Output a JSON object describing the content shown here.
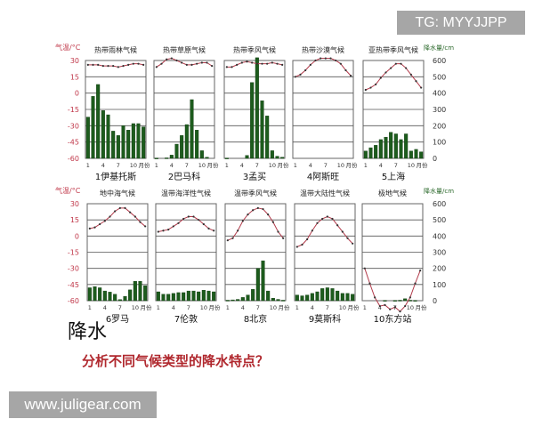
{
  "watermark_top": "TG: MYYJJPP",
  "watermark_bottom": "www.juligear.com",
  "question": "分析不同气候类型的降水特点？",
  "precip_label": "降水",
  "colors": {
    "bar": "#1d5c1d",
    "temp_line": "#b23a4a",
    "temp_axis": "#c0384a",
    "precip_axis": "#2e6b2e",
    "grid": "#555555"
  },
  "axes": {
    "left_label": "气温/°C",
    "right_label": "降水量/cm",
    "month_unit": "月份",
    "temp_ticks": [
      30,
      15,
      0,
      -15,
      -30,
      -45,
      -60
    ],
    "precip_ticks": [
      600,
      500,
      400,
      300,
      200,
      100,
      0
    ],
    "month_ticks": [
      "1",
      "4",
      "7",
      "10"
    ]
  },
  "chart_data": [
    {
      "type": "bar+line",
      "title": "热带雨林气候",
      "station": "1伊基托斯",
      "ylim": [
        -60,
        30
      ],
      "y2lim": [
        0,
        600
      ],
      "temperature": [
        26,
        26,
        26,
        25,
        25,
        25,
        24,
        25,
        26,
        27,
        27,
        26
      ],
      "precipitation": [
        253,
        380,
        453,
        293,
        267,
        167,
        140,
        200,
        173,
        213,
        213,
        193
      ]
    },
    {
      "type": "bar+line",
      "title": "热带草原气候",
      "station": "2巴马科",
      "ylim": [
        -60,
        30
      ],
      "y2lim": [
        0,
        600
      ],
      "temperature": [
        24,
        27,
        31,
        32,
        30,
        28,
        26,
        26,
        27,
        28,
        28,
        25
      ],
      "precipitation": [
        2,
        0,
        3,
        20,
        87,
        140,
        207,
        360,
        173,
        47,
        7,
        0
      ]
    },
    {
      "type": "bar+line",
      "title": "热带季风气候",
      "station": "3孟买",
      "ylim": [
        -60,
        30
      ],
      "y2lim": [
        0,
        600
      ],
      "temperature": [
        24,
        24,
        26,
        28,
        29,
        28,
        27,
        27,
        27,
        28,
        27,
        26
      ],
      "precipitation": [
        2,
        1,
        1,
        1,
        18,
        465,
        617,
        353,
        260,
        47,
        13,
        7
      ]
    },
    {
      "type": "bar+line",
      "title": "热带沙漠气候",
      "station": "4阿斯旺",
      "ylim": [
        -60,
        30
      ],
      "y2lim": [
        0,
        600
      ],
      "temperature": [
        15,
        17,
        21,
        26,
        30,
        32,
        32,
        32,
        30,
        27,
        21,
        16
      ],
      "precipitation": [
        0,
        0,
        0,
        1,
        0,
        0,
        0,
        0,
        0,
        1,
        0,
        0
      ]
    },
    {
      "type": "bar+line",
      "title": "亚热带季风气候",
      "station": "5上海",
      "ylim": [
        -60,
        30
      ],
      "y2lim": [
        0,
        600
      ],
      "temperature": [
        3,
        5,
        8,
        14,
        19,
        23,
        27,
        27,
        23,
        17,
        11,
        5
      ],
      "precipitation": [
        45,
        65,
        80,
        115,
        130,
        160,
        150,
        115,
        150,
        45,
        55,
        40
      ]
    },
    {
      "type": "bar+line",
      "title": "地中海气候",
      "station": "6罗马",
      "ylim": [
        -60,
        30
      ],
      "y2lim": [
        0,
        600
      ],
      "temperature": [
        7,
        8,
        11,
        14,
        18,
        23,
        26,
        26,
        22,
        18,
        13,
        9
      ],
      "precipitation": [
        80,
        87,
        80,
        60,
        53,
        40,
        7,
        27,
        67,
        120,
        120,
        93
      ]
    },
    {
      "type": "bar+line",
      "title": "温带海洋性气候",
      "station": "7伦敦",
      "ylim": [
        -60,
        30
      ],
      "y2lim": [
        0,
        600
      ],
      "temperature": [
        4,
        5,
        6,
        9,
        12,
        16,
        18,
        18,
        15,
        11,
        7,
        5
      ],
      "precipitation": [
        55,
        40,
        40,
        45,
        50,
        50,
        60,
        60,
        55,
        65,
        60,
        55
      ]
    },
    {
      "type": "bar+line",
      "title": "温带季风气候",
      "station": "8北京",
      "ylim": [
        -60,
        30
      ],
      "y2lim": [
        0,
        600
      ],
      "temperature": [
        -4,
        -2,
        5,
        14,
        20,
        24,
        26,
        25,
        20,
        13,
        4,
        -2
      ],
      "precipitation": [
        3,
        5,
        8,
        20,
        35,
        70,
        200,
        247,
        60,
        15,
        8,
        3
      ]
    },
    {
      "type": "bar+line",
      "title": "温带大陆性气候",
      "station": "9莫斯科",
      "ylim": [
        -60,
        30
      ],
      "y2lim": [
        0,
        600
      ],
      "temperature": [
        -10,
        -8,
        -3,
        5,
        12,
        16,
        18,
        16,
        10,
        4,
        -2,
        -7
      ],
      "precipitation": [
        35,
        30,
        35,
        45,
        55,
        75,
        80,
        75,
        60,
        45,
        45,
        40
      ]
    },
    {
      "type": "bar+line",
      "title": "极地气候",
      "station": "10东方站",
      "ylim": [
        -60,
        30
      ],
      "y2lim": [
        0,
        600
      ],
      "temperature": [
        -30,
        -44,
        -57,
        -65,
        -64,
        -68,
        -66,
        -70,
        -65,
        -57,
        -44,
        -32
      ],
      "precipitation": [
        0,
        0,
        1,
        1,
        2,
        1,
        2,
        3,
        12,
        3,
        2,
        1
      ]
    }
  ]
}
